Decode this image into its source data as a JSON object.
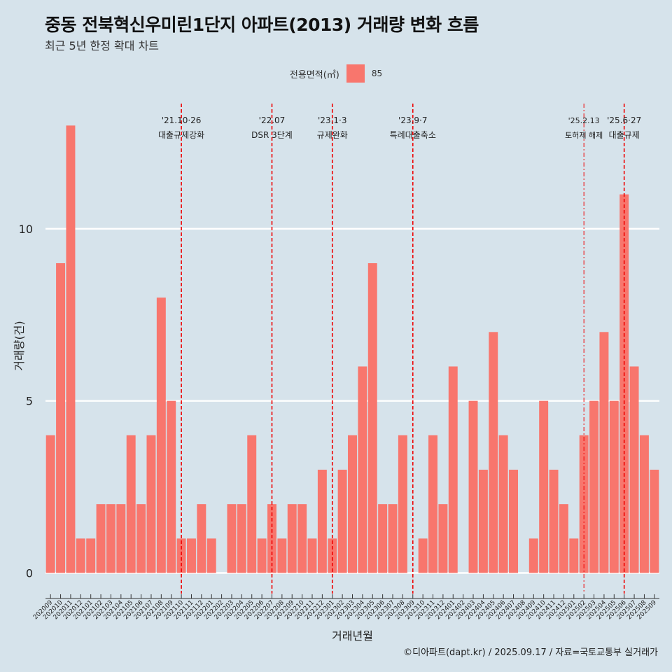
{
  "header": {
    "title": "중동 전북혁신우미린1단지 아파트(2013) 거래량 변화 흐름",
    "subtitle": "최근 5년 한정 확대 차트"
  },
  "legend": {
    "title": "전용면적(㎡)",
    "label": "85",
    "color": "#f8766d"
  },
  "caption": "©디아파트(dapt.kr) / 2025.09.17 / 자료=국토교통부 실거래가",
  "chart_data": {
    "type": "bar",
    "xlabel": "거래년월",
    "ylabel": "거래량(건)",
    "ylim": [
      -0.6,
      13.8
    ],
    "yticks": [
      0,
      5,
      10
    ],
    "grid": true,
    "legend_position": "top",
    "bar_color": "#f8766d",
    "categories": [
      "202009",
      "202010",
      "202011",
      "202012",
      "202101",
      "202102",
      "202103",
      "202104",
      "202105",
      "202106",
      "202107",
      "202108",
      "202109",
      "202110",
      "202111",
      "202112",
      "202201",
      "202202",
      "202203",
      "202204",
      "202205",
      "202206",
      "202207",
      "202208",
      "202209",
      "202210",
      "202211",
      "202212",
      "202301",
      "202302",
      "202303",
      "202304",
      "202305",
      "202306",
      "202307",
      "202308",
      "202309",
      "202310",
      "202311",
      "202312",
      "202401",
      "202402",
      "202403",
      "202404",
      "202405",
      "202406",
      "202407",
      "202408",
      "202409",
      "202410",
      "202411",
      "202412",
      "202501",
      "202502",
      "202503",
      "202504",
      "202505",
      "202506",
      "202507",
      "202508",
      "202509"
    ],
    "values": [
      4,
      9,
      13,
      1,
      1,
      2,
      2,
      2,
      4,
      2,
      4,
      8,
      5,
      1,
      1,
      2,
      1,
      0,
      2,
      2,
      4,
      1,
      2,
      1,
      2,
      2,
      1,
      3,
      1,
      3,
      4,
      6,
      9,
      2,
      2,
      4,
      0,
      1,
      4,
      2,
      6,
      0,
      5,
      3,
      7,
      4,
      3,
      0,
      1,
      5,
      3,
      2,
      1,
      4,
      5,
      7,
      5,
      11,
      6,
      4,
      3
    ],
    "annotations": [
      {
        "at": "202110",
        "line1": "'21.10·26",
        "line2": "대출규제강화",
        "style": "dashed"
      },
      {
        "at": "202207",
        "line1": "'22.07",
        "line2": "DSR 3단계",
        "style": "dashed"
      },
      {
        "at": "202301",
        "line1": "'23.1·3",
        "line2": "규제완화",
        "style": "dashed"
      },
      {
        "at": "202309",
        "line1": "'23.9·7",
        "line2": "특례대출축소",
        "style": "dashed"
      },
      {
        "at": "202502",
        "line1": "'25.2.13",
        "line2": "토허제 해제",
        "style": "dotdash"
      },
      {
        "at": "202506",
        "line1": "'25.6·27",
        "line2": "대출규제",
        "style": "dashed"
      }
    ]
  }
}
